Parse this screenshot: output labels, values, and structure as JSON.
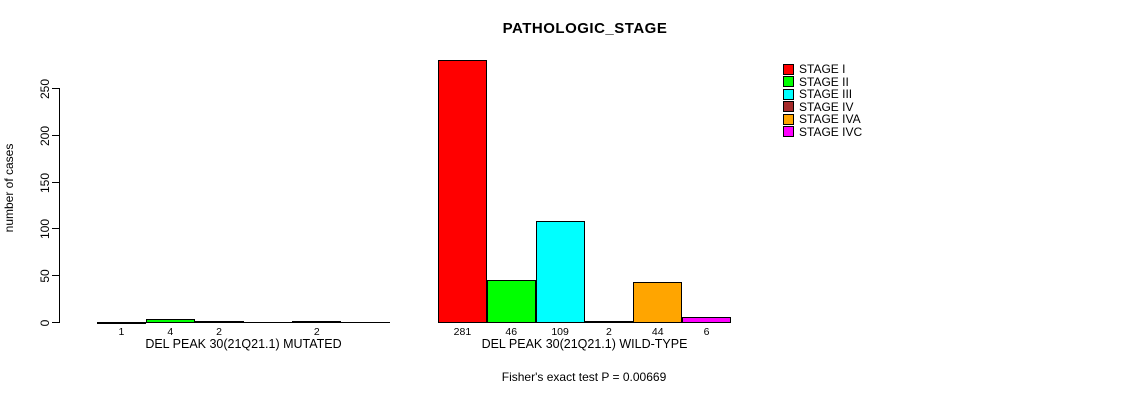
{
  "title": "PATHOLOGIC_STAGE",
  "ylabel": "number of cases",
  "footer": "Fisher's exact test P = 0.00669",
  "chart_data": {
    "type": "bar",
    "title": "PATHOLOGIC_STAGE",
    "xlabel": "",
    "ylabel": "number of cases",
    "ylim": [
      0,
      250
    ],
    "yticks": [
      0,
      50,
      100,
      150,
      200,
      250
    ],
    "grid": false,
    "legend_position": "right",
    "categories": [
      "DEL PEAK 30(21Q21.1) MUTATED",
      "DEL PEAK 30(21Q21.1) WILD-TYPE"
    ],
    "series": [
      {
        "name": "STAGE I",
        "color": "#FF0000",
        "values": [
          1,
          281
        ]
      },
      {
        "name": "STAGE II",
        "color": "#00FF00",
        "values": [
          4,
          46
        ]
      },
      {
        "name": "STAGE III",
        "color": "#00FFFF",
        "values": [
          2,
          109
        ]
      },
      {
        "name": "STAGE IV",
        "color": "#A52A2A",
        "values": [
          0,
          2
        ]
      },
      {
        "name": "STAGE IVA",
        "color": "#FFA500",
        "values": [
          2,
          44
        ]
      },
      {
        "name": "STAGE IVC",
        "color": "#FF00FF",
        "values": [
          0,
          6
        ]
      }
    ],
    "bar_labels": [
      [
        "1",
        "4",
        "2",
        "",
        "2",
        ""
      ],
      [
        "281",
        "46",
        "109",
        "2",
        "44",
        "6"
      ]
    ],
    "annotation": "Fisher's exact test P = 0.00669"
  }
}
